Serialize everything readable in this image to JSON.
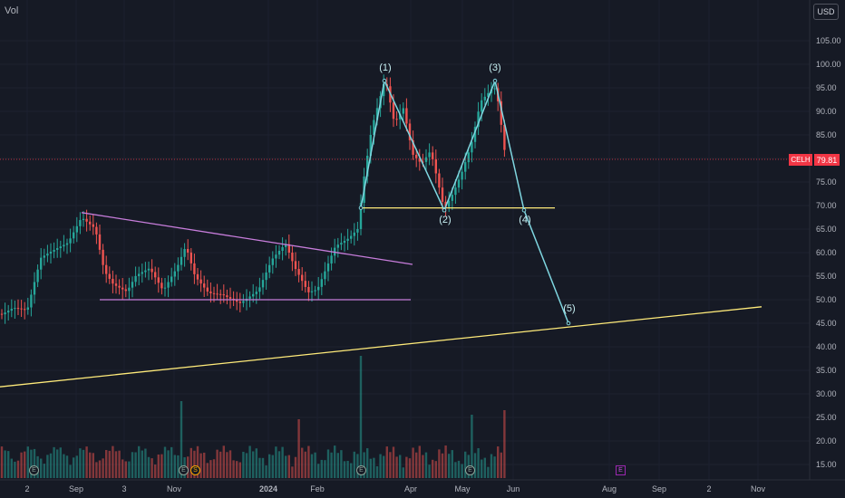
{
  "header": {
    "vol_label": "Vol",
    "currency_button": "USD"
  },
  "price_axis": {
    "ticks": [
      "105.00",
      "100.00",
      "95.00",
      "90.00",
      "85.00",
      "80.00",
      "75.00",
      "70.00",
      "65.00",
      "60.00",
      "55.00",
      "50.00",
      "45.00",
      "40.00",
      "35.00",
      "30.00",
      "25.00",
      "20.00",
      "15.00"
    ]
  },
  "time_axis": {
    "ticks": [
      "2",
      "Sep",
      "3",
      "Nov",
      "2024",
      "Feb",
      "Apr",
      "May",
      "Jun",
      "Aug",
      "Sep",
      "2",
      "Nov"
    ]
  },
  "current_price": {
    "ticker": "CELH",
    "value": "79.81"
  },
  "wave_labels": [
    "(1)",
    "(2)",
    "(3)",
    "(4)",
    "(5)"
  ],
  "events": {
    "earnings_label": "E",
    "split_label": "S"
  },
  "colors": {
    "up": "#26a69a",
    "down": "#ef5350",
    "price_line": "#f23645",
    "wave": "#7fd6e0",
    "triangle": "#c77ddb",
    "support": "#ffeb7a",
    "background": "#161a25"
  },
  "chart_data": {
    "type": "candlestick",
    "ylim": [
      13,
      108
    ],
    "price_series_approx": [
      {
        "x": "Aug 2023",
        "y": 47
      },
      {
        "x": "early Sep 2023",
        "y": 63
      },
      {
        "x": "Sep 2023",
        "y": 68
      },
      {
        "x": "late Sep 2023",
        "y": 55
      },
      {
        "x": "Oct 2023",
        "y": 52
      },
      {
        "x": "Nov 2023",
        "y": 62
      },
      {
        "x": "Dec 2023",
        "y": 52
      },
      {
        "x": "Jan 2024",
        "y": 60
      },
      {
        "x": "late Jan 2024",
        "y": 51
      },
      {
        "x": "Feb 2024",
        "y": 58
      },
      {
        "x": "early Mar 2024",
        "y": 70
      },
      {
        "x": "Mar 2024",
        "y": 97
      },
      {
        "x": "Apr 2024",
        "y": 80
      },
      {
        "x": "late Apr 2024",
        "y": 69
      },
      {
        "x": "May 2024",
        "y": 96
      },
      {
        "x": "late May 2024",
        "y": 79.81
      }
    ],
    "projected_path": [
      {
        "label": "(1)",
        "x": "Mar 2024",
        "y": 96.5
      },
      {
        "label": "(2)",
        "x": "late Apr 2024",
        "y": 69
      },
      {
        "label": "(3)",
        "x": "late May 2024",
        "y": 96.5
      },
      {
        "label": "(4)",
        "x": "mid Jun 2024",
        "y": 69
      },
      {
        "label": "(5)",
        "x": "Jul 2024",
        "y": 45
      }
    ],
    "support_level": 69.5,
    "triangle": {
      "upper_start": 68.5,
      "upper_end": 57.5,
      "lower": 50
    },
    "long_term_trendline": {
      "start": 31.5,
      "end": 48.5
    },
    "volume_peak_note": "highest volume bar early Mar 2024"
  }
}
